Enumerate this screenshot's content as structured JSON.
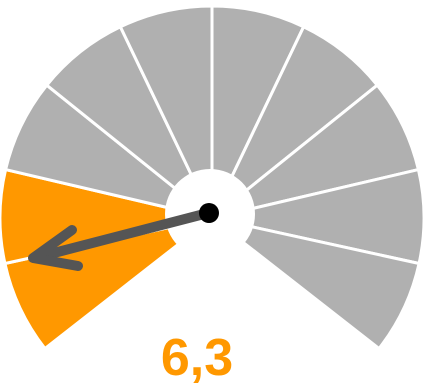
{
  "gauge": {
    "value_label": "6,3",
    "segment_count": 10,
    "active_segments": 2,
    "needle_direction": "lower-left",
    "colors": {
      "active": "#ff9800",
      "inactive": "#b0b0b0",
      "separator": "#ffffff",
      "needle": "#555555",
      "needle_tip": "#000000",
      "value_text": "#ff9800"
    }
  }
}
